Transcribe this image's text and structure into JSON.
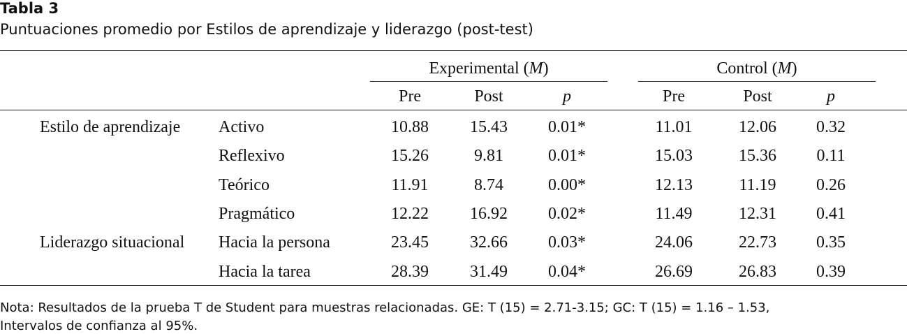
{
  "header": {
    "title": "Tabla 3",
    "subtitle": "Puntuaciones promedio por Estilos de aprendizaje y liderazgo (post-test)"
  },
  "table": {
    "column_groups": [
      {
        "label_parts": [
          "Experimental (",
          "M",
          ")"
        ]
      },
      {
        "label_parts": [
          "Control (",
          "M",
          ")"
        ]
      }
    ],
    "columns": [
      "Pre",
      "Post",
      "p",
      "Pre",
      "Post",
      "p"
    ],
    "groups": [
      {
        "label": "Estilo de aprendizaje",
        "rows": [
          {
            "label": "Activo",
            "cells": [
              "10.88",
              "15.43",
              "0.01*",
              "11.01",
              "12.06",
              "0.32"
            ]
          },
          {
            "label": "Reflexivo",
            "cells": [
              "15.26",
              "9.81",
              "0.01*",
              "15.03",
              "15.36",
              "0.11"
            ]
          },
          {
            "label": "Teórico",
            "cells": [
              "11.91",
              "8.74",
              "0.00*",
              "12.13",
              "11.19",
              "0.26"
            ]
          },
          {
            "label": "Pragmático",
            "cells": [
              "12.22",
              "16.92",
              "0.02*",
              "11.49",
              "12.31",
              "0.41"
            ]
          }
        ]
      },
      {
        "label": "Liderazgo situacional",
        "rows": [
          {
            "label": "Hacia la persona",
            "cells": [
              "23.45",
              "32.66",
              "0.03*",
              "24.06",
              "22.73",
              "0.35"
            ]
          },
          {
            "label": "Hacia la tarea",
            "cells": [
              "28.39",
              "31.49",
              "0.04*",
              "26.69",
              "26.83",
              "0.39"
            ]
          }
        ]
      }
    ]
  },
  "note": [
    "Nota: Resultados de la prueba T de Student para muestras relacionadas. GE: T (15) = 2.71-3.15; GC: T (15) = 1.16 – 1.53,",
    "Intervalos de confianza al 95%."
  ]
}
